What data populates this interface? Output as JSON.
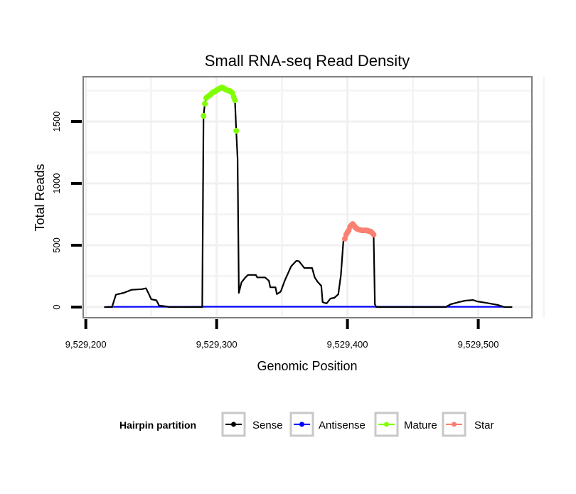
{
  "chart_data": {
    "type": "line",
    "title": "Small RNA-seq Read Density",
    "xlabel": "Genomic Position",
    "ylabel": "Total Reads",
    "xlim": [
      9529198,
      9529541
    ],
    "ylim": [
      -86,
      1862
    ],
    "x_ticks": [
      9529200,
      9529300,
      9529400,
      9529500
    ],
    "x_tick_labels": [
      "9,529,200",
      "9,529,300",
      "9,529,400",
      "9,529,500"
    ],
    "y_ticks": [
      0,
      500,
      1000,
      1500
    ],
    "y_tick_labels": [
      "0",
      "500",
      "1000",
      "1500"
    ],
    "grid": true,
    "legend": {
      "title": "Hairpin partition",
      "placement": "bottom",
      "entries": [
        "Sense",
        "Antisense",
        "Mature",
        "Star"
      ]
    },
    "series": [
      {
        "name": "Sense",
        "color": "#000000",
        "points": false,
        "x": [
          9529214,
          9529220,
          9529223,
          9529229,
          9529235,
          9529243,
          9529246,
          9529248,
          9529250,
          9529254,
          9529256,
          9529262,
          9529263,
          9529289,
          9529290,
          9529291,
          9529292,
          9529293,
          9529295,
          9529297,
          9529300,
          9529303,
          9529304,
          9529307,
          9529309,
          9529312,
          9529314,
          9529315,
          9529316,
          9529317,
          9529319,
          9529322,
          9529324,
          9529330,
          9529331,
          9529337,
          9529340,
          9529341,
          9529345,
          9529346,
          9529349,
          9529352,
          9529357,
          9529361,
          9529363,
          9529367,
          9529373,
          9529375,
          9529377,
          9529380,
          9529381,
          9529384,
          9529387,
          9529390,
          9529393,
          9529395,
          9529397,
          9529398,
          9529399,
          9529400,
          9529402,
          9529404,
          9529406,
          9529409,
          9529411,
          9529415,
          9529418,
          9529420,
          9529421,
          9529422,
          9529475,
          9529479,
          9529485,
          9529490,
          9529496,
          9529499,
          9529506,
          9529515,
          9529520,
          9529526
        ],
        "y": [
          0,
          0,
          100,
          115,
          140,
          145,
          152,
          110,
          63,
          55,
          12,
          5,
          0,
          0,
          1546,
          1644,
          1690,
          1707,
          1724,
          1741,
          1753,
          1770,
          1776,
          1753,
          1747,
          1730,
          1672,
          1425,
          1200,
          115,
          200,
          240,
          260,
          260,
          240,
          240,
          212,
          160,
          160,
          105,
          125,
          212,
          330,
          375,
          370,
          316,
          316,
          240,
          207,
          172,
          40,
          29,
          69,
          75,
          103,
          259,
          552,
          552,
          586,
          615,
          650,
          672,
          644,
          626,
          620,
          620,
          609,
          586,
          23,
          0,
          0,
          23,
          40,
          52,
          57,
          46,
          34,
          17,
          0,
          0
        ]
      },
      {
        "name": "Antisense",
        "color": "#0000FF",
        "points": false,
        "x": [
          9529216,
          9529300,
          9529400,
          9529520
        ],
        "y": [
          2,
          3,
          3,
          2
        ]
      },
      {
        "name": "Mature",
        "color": "#7FFF00",
        "points": true,
        "x": [
          9529290,
          9529291,
          9529292,
          9529293,
          9529294,
          9529295,
          9529296,
          9529297,
          9529298,
          9529299,
          9529300,
          9529301,
          9529302,
          9529303,
          9529304,
          9529305,
          9529306,
          9529307,
          9529308,
          9529309,
          9529310,
          9529311,
          9529312,
          9529313,
          9529314,
          9529315
        ],
        "y": [
          1546,
          1644,
          1690,
          1700,
          1707,
          1715,
          1724,
          1735,
          1741,
          1745,
          1753,
          1760,
          1765,
          1770,
          1776,
          1772,
          1765,
          1758,
          1753,
          1750,
          1747,
          1740,
          1730,
          1700,
          1672,
          1425
        ]
      },
      {
        "name": "Star",
        "color": "#FA8072",
        "points": true,
        "x": [
          9529398,
          9529399,
          9529400,
          9529401,
          9529402,
          9529403,
          9529404,
          9529405,
          9529406,
          9529407,
          9529408,
          9529409,
          9529410,
          9529411,
          9529412,
          9529413,
          9529414,
          9529415,
          9529416,
          9529417,
          9529418,
          9529419,
          9529420
        ],
        "y": [
          552,
          586,
          605,
          620,
          650,
          662,
          672,
          660,
          644,
          635,
          630,
          626,
          623,
          620,
          620,
          620,
          620,
          620,
          615,
          612,
          609,
          598,
          586
        ]
      }
    ]
  }
}
